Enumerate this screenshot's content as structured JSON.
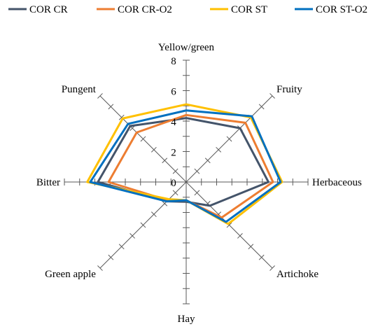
{
  "chart_data": {
    "type": "radar",
    "title": "",
    "categories": [
      "Yellow/green",
      "Fruity",
      "Herbaceous",
      "Artichoke",
      "Hay",
      "Green apple",
      "Bitter",
      "Pungent"
    ],
    "r_ticks": [
      "0",
      "2",
      "4",
      "6",
      "8"
    ],
    "r_range": [
      0,
      8
    ],
    "grid": "axes-with-tick-marks",
    "legend_position": "top",
    "series": [
      {
        "name": "COR CR",
        "color": "#44546A",
        "values": [
          4.2,
          5.0,
          5.4,
          2.2,
          1.3,
          1.8,
          5.8,
          5.2
        ]
      },
      {
        "name": "COR CR-O2",
        "color": "#ED7D31",
        "values": [
          4.4,
          5.5,
          5.7,
          3.3,
          1.2,
          1.7,
          5.1,
          4.6
        ]
      },
      {
        "name": "COR ST",
        "color": "#FFC000",
        "values": [
          5.1,
          6.0,
          6.3,
          3.9,
          1.2,
          1.6,
          6.5,
          5.9
        ]
      },
      {
        "name": "COR ST-O2",
        "color": "#0070C0",
        "values": [
          4.7,
          6.1,
          6.2,
          3.7,
          1.2,
          1.8,
          6.3,
          5.4
        ]
      }
    ]
  }
}
